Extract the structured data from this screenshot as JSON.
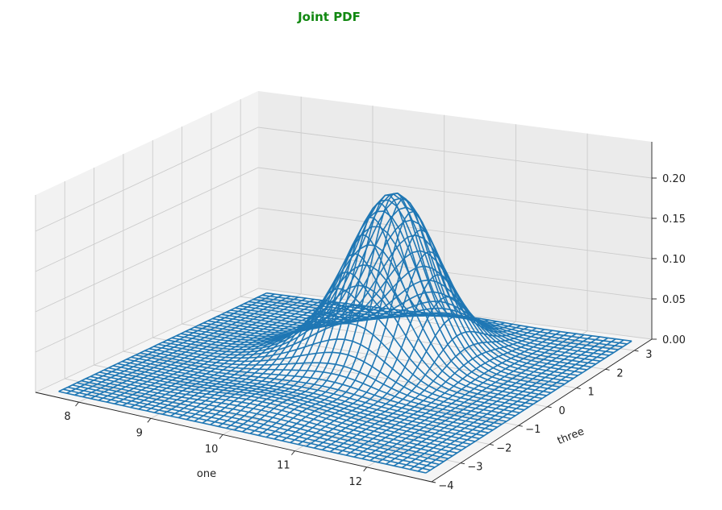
{
  "chart_data": {
    "type": "surface-wireframe-3d",
    "title": "Joint PDF",
    "xlabel": "one",
    "ylabel": "three",
    "zlabel": "",
    "x_ticks": [
      "8",
      "9",
      "10",
      "11",
      "12"
    ],
    "y_ticks": [
      "−4",
      "−3",
      "−2",
      "−1",
      "0",
      "1",
      "2",
      "3"
    ],
    "z_ticks": [
      "0.00",
      "0.05",
      "0.10",
      "0.15",
      "0.20"
    ],
    "xlim": [
      7.4,
      12.9
    ],
    "ylim": [
      -4,
      3.6
    ],
    "zlim": [
      0,
      0.245
    ],
    "grid": true,
    "peaks": [
      {
        "x": 10.4,
        "y": 1.0,
        "z": 0.19
      },
      {
        "x": 9.7,
        "y": 0.4,
        "z": 0.035
      },
      {
        "x": 10.0,
        "y": -2.2,
        "z": 0.01
      }
    ],
    "colors": {
      "surface": "#1f77b4",
      "title": "#118811",
      "pane": "#f2f2f2",
      "grid": "#cccccc"
    }
  }
}
